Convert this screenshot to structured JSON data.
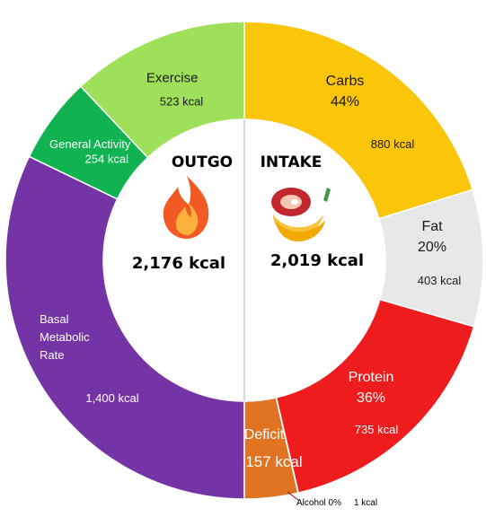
{
  "chart_data": {
    "type": "pie",
    "center": {
      "outgo_title": "OUTGO",
      "outgo_total": "2,176 kcal",
      "outgo_icon": "fire-icon",
      "intake_title": "INTAKE",
      "intake_total": "2,019 kcal",
      "intake_icon": "food-icon"
    },
    "outgo": [
      {
        "name": "Exercise",
        "value": 523,
        "value_label": "523 kcal",
        "color": "#9ee05a"
      },
      {
        "name": "General Activity",
        "value": 254,
        "value_label": "254 kcal",
        "color": "#11b350"
      },
      {
        "name": "Basal Metabolic Rate",
        "name_lines": [
          "Basal",
          "Metabolic",
          "Rate"
        ],
        "value": 1400,
        "value_label": "1,400 kcal",
        "color": "#7434a6"
      }
    ],
    "intake": [
      {
        "name": "Carbs",
        "percent_label": "44%",
        "value": 880,
        "value_label": "880 kcal",
        "color": "#fbc50a"
      },
      {
        "name": "Fat",
        "percent_label": "20%",
        "value": 403,
        "value_label": "403 kcal",
        "color": "#e8e8e8"
      },
      {
        "name": "Protein",
        "percent_label": "36%",
        "value": 735,
        "value_label": "735 kcal",
        "color": "#ee1c1c"
      },
      {
        "name": "Alcohol",
        "percent_label": "0%",
        "value": 1,
        "value_label": "1 kcal",
        "color": "#7a1010"
      },
      {
        "name": "Deficit",
        "value": 157,
        "value_label": "157 kcal",
        "color": "#e07422"
      }
    ]
  }
}
